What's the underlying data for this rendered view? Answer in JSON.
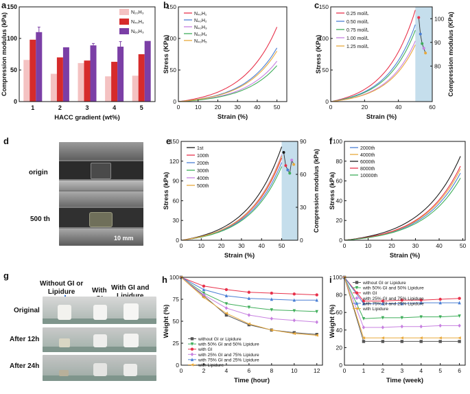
{
  "panel_labels": {
    "a": "a",
    "b": "b",
    "c": "c",
    "d": "d",
    "e": "e",
    "f": "f",
    "g": "g",
    "h": "h",
    "i": "i"
  },
  "chart_data": [
    {
      "id": "a",
      "type": "bar",
      "xlabel": "HACC gradient (wt%)",
      "ylabel": "Compression modulus (kPa)",
      "ylim": [
        0,
        150
      ],
      "yticks": [
        0,
        50,
        100,
        150
      ],
      "categories": [
        "1",
        "2",
        "3",
        "4",
        "5"
      ],
      "series": [
        {
          "name": "N₂₀H₃",
          "color": "#f4c2c2",
          "values": [
            66,
            44,
            61,
            40,
            41
          ],
          "errors": [
            0,
            0,
            0,
            0,
            0
          ]
        },
        {
          "name": "N₄₀H₃",
          "color": "#d62b2b",
          "values": [
            98,
            70,
            65,
            63,
            75
          ],
          "errors": [
            0,
            0,
            0,
            0,
            0
          ]
        },
        {
          "name": "N₆₀H₃",
          "color": "#7b3fa6",
          "values": [
            110,
            86,
            89,
            87,
            96
          ],
          "errors": [
            8,
            0,
            3,
            8,
            0
          ]
        }
      ]
    },
    {
      "id": "b",
      "type": "line",
      "xlabel": "Strain (%)",
      "ylabel": "Stress (KPa)",
      "xlim": [
        0,
        55
      ],
      "xticks": [
        0,
        10,
        20,
        30,
        40,
        50
      ],
      "ylim": [
        0,
        150
      ],
      "yticks": [
        0,
        50,
        100,
        150
      ],
      "series": [
        {
          "name": "N₄₀H₁",
          "color": "#e8314a",
          "end": [
            50,
            118
          ],
          "k": 2.9
        },
        {
          "name": "N₄₀H₂",
          "color": "#4a7fd4",
          "end": [
            50,
            85
          ],
          "k": 3.0
        },
        {
          "name": "N₄₀H₃",
          "color": "#c780e0",
          "end": [
            50,
            64
          ],
          "k": 3.0
        },
        {
          "name": "N₄₀H₄",
          "color": "#3fae5a",
          "end": [
            50,
            57
          ],
          "k": 3.0
        },
        {
          "name": "N₄₀H₅",
          "color": "#e8a93c",
          "end": [
            50,
            80
          ],
          "k": 3.0
        }
      ]
    },
    {
      "id": "c",
      "type": "line",
      "xlabel": "Strain (%)",
      "ylabel": "Stress (KPa)",
      "y2label": "Compression modulus (KPa)",
      "xlim": [
        0,
        60
      ],
      "xticks": [
        0,
        20,
        40,
        60
      ],
      "ylim": [
        0,
        150
      ],
      "yticks": [
        0,
        50,
        100,
        150
      ],
      "y2lim": [
        65,
        105
      ],
      "y2ticks": [
        80,
        90,
        100
      ],
      "shade": [
        50,
        60
      ],
      "shade_color": "#c5deec",
      "series": [
        {
          "name": "0.25 mol/L",
          "color": "#e8314a",
          "end": [
            50,
            145
          ],
          "k": 2.8
        },
        {
          "name": "0.50 mol/L",
          "color": "#4a7fd4",
          "end": [
            50,
            122
          ],
          "k": 2.9
        },
        {
          "name": "0.75 mol/L",
          "color": "#3fae5a",
          "end": [
            50,
            113
          ],
          "k": 2.9
        },
        {
          "name": "1.00 mol/L",
          "color": "#c780e0",
          "end": [
            50,
            96
          ],
          "k": 3.0
        },
        {
          "name": "1.25 mol/L",
          "color": "#e8a93c",
          "end": [
            50,
            90
          ],
          "k": 3.0
        }
      ],
      "modulus_points": {
        "x": [
          52,
          53,
          54,
          55,
          56
        ],
        "y": [
          100.5,
          93.5,
          89.5,
          87.5,
          85.5
        ],
        "colors": [
          "#e8314a",
          "#4a7fd4",
          "#3fae5a",
          "#c780e0",
          "#e8a93c"
        ]
      }
    },
    {
      "id": "e",
      "type": "line",
      "xlabel": "Strain (%)",
      "ylabel": "Stress (kPa)",
      "y2label": "Compression modulus (kPa)",
      "xlim": [
        0,
        58
      ],
      "xticks": [
        0,
        10,
        20,
        30,
        40,
        50
      ],
      "ylim": [
        0,
        150
      ],
      "yticks": [
        0,
        30,
        60,
        90,
        120,
        150
      ],
      "y2lim": [
        0,
        90
      ],
      "y2ticks": [
        0,
        30,
        60,
        90
      ],
      "shade": [
        50,
        58
      ],
      "shade_color": "#c5deec",
      "series": [
        {
          "name": "1st",
          "color": "#1a1a1a",
          "end": [
            50,
            142
          ],
          "k": 2.9
        },
        {
          "name": "100th",
          "color": "#e8314a",
          "end": [
            50,
            125
          ],
          "k": 3.0
        },
        {
          "name": "200th",
          "color": "#4a7fd4",
          "end": [
            50,
            118
          ],
          "k": 3.0
        },
        {
          "name": "300th",
          "color": "#3fae5a",
          "end": [
            50,
            112
          ],
          "k": 3.0
        },
        {
          "name": "400th",
          "color": "#c780e0",
          "end": [
            50,
            130
          ],
          "k": 3.0
        },
        {
          "name": "500th",
          "color": "#e8a93c",
          "end": [
            50,
            128
          ],
          "k": 3.0
        }
      ],
      "modulus_points": {
        "x": [
          51,
          52,
          53,
          54,
          55,
          56
        ],
        "y": [
          80,
          68,
          64,
          61,
          73,
          69
        ],
        "colors": [
          "#1a1a1a",
          "#e8314a",
          "#4a7fd4",
          "#3fae5a",
          "#c780e0",
          "#e8a93c"
        ]
      }
    },
    {
      "id": "f",
      "type": "line",
      "xlabel": "Strain (%)",
      "ylabel": "Stress (kPa)",
      "xlim": [
        0,
        51
      ],
      "xticks": [
        0,
        10,
        20,
        30,
        40,
        50
      ],
      "ylim": [
        0,
        100
      ],
      "yticks": [
        0,
        20,
        40,
        60,
        80,
        100
      ],
      "series": [
        {
          "name": "2000th",
          "color": "#4a7fd4",
          "end": [
            49,
            68
          ],
          "k": 3.1
        },
        {
          "name": "4000th",
          "color": "#e8a93c",
          "end": [
            49,
            72
          ],
          "k": 3.1
        },
        {
          "name": "6000th",
          "color": "#1a1a1a",
          "end": [
            49,
            85
          ],
          "k": 3.0
        },
        {
          "name": "8000th",
          "color": "#e8314a",
          "end": [
            49,
            75
          ],
          "k": 3.1
        },
        {
          "name": "10000th",
          "color": "#3fae5a",
          "end": [
            49,
            63
          ],
          "k": 3.1
        }
      ]
    },
    {
      "id": "h",
      "type": "line",
      "xlabel": "Time (hour)",
      "ylabel": "Weight (%)",
      "xlim": [
        0,
        12.5
      ],
      "xticks": [
        0,
        2,
        4,
        6,
        8,
        10,
        12
      ],
      "ylim": [
        0,
        100
      ],
      "yticks": [
        0,
        25,
        50,
        75,
        100
      ],
      "x": [
        0,
        2,
        4,
        6,
        8,
        10,
        12
      ],
      "series": [
        {
          "name": "without GI or Lipidure",
          "color": "#555555",
          "marker": "square",
          "values": [
            100,
            79,
            57,
            46,
            40,
            37,
            35
          ]
        },
        {
          "name": "with 50% GI and 50% Lipidure",
          "color": "#3fae5a",
          "marker": "tri-down",
          "values": [
            100,
            82,
            70,
            66,
            63,
            62,
            61
          ]
        },
        {
          "name": "with GI",
          "color": "#e8314a",
          "marker": "circle",
          "values": [
            100,
            90,
            86,
            83,
            82,
            81,
            80
          ]
        },
        {
          "name": "with 25% GI and 75% Lipidure",
          "color": "#c780e0",
          "marker": "diamond",
          "values": [
            100,
            80,
            65,
            57,
            53,
            51,
            49
          ]
        },
        {
          "name": "with 75% GI and 25% Lipidure",
          "color": "#4a7fd4",
          "marker": "tri-up",
          "values": [
            100,
            86,
            79,
            76,
            75,
            74,
            74
          ]
        },
        {
          "name": "with Lipidure",
          "color": "#e8a93c",
          "marker": "left",
          "values": [
            100,
            77,
            59,
            47,
            40,
            36,
            34
          ]
        }
      ]
    },
    {
      "id": "i",
      "type": "line",
      "xlabel": "Time (week)",
      "ylabel": "Weight (%)",
      "xlim": [
        0,
        6.3
      ],
      "xticks": [
        0,
        1,
        2,
        3,
        4,
        5,
        6
      ],
      "ylim": [
        0,
        100
      ],
      "yticks": [
        0,
        20,
        40,
        60,
        80,
        100
      ],
      "x": [
        0,
        1,
        2,
        3,
        4,
        5,
        6
      ],
      "series": [
        {
          "name": "without GI or Lipidure",
          "color": "#555555",
          "marker": "square",
          "values": [
            100,
            27,
            27,
            27,
            27,
            27,
            27
          ]
        },
        {
          "name": "with 50% GI and 50% Lipidure",
          "color": "#3fae5a",
          "marker": "tri-down",
          "values": [
            100,
            53,
            54,
            54,
            55,
            55,
            56
          ]
        },
        {
          "name": "with GI",
          "color": "#e8314a",
          "marker": "circle",
          "values": [
            100,
            73,
            73,
            74,
            74,
            75,
            76
          ]
        },
        {
          "name": "with 25% GI and 75% Lipidure",
          "color": "#c780e0",
          "marker": "diamond",
          "values": [
            100,
            43,
            43,
            44,
            44,
            45,
            45
          ]
        },
        {
          "name": "with 75% GI and 25% Lipidure",
          "color": "#4a7fd4",
          "marker": "tri-up",
          "values": [
            100,
            70,
            70,
            70,
            71,
            71,
            71
          ]
        },
        {
          "name": "with Lipidure",
          "color": "#e8a93c",
          "marker": "left",
          "values": [
            100,
            31,
            31,
            31,
            31,
            31,
            31
          ]
        }
      ]
    }
  ],
  "photo_d": {
    "origin_label": "origin",
    "cycle_label": "500 th",
    "scale_label": "10 mm"
  },
  "photo_g": {
    "col_labels": [
      "Without GI or\nLipidure",
      "With\nGI",
      "With GI and\nLipidure"
    ],
    "row_labels": [
      "Original",
      "After 12h",
      "After 24h"
    ]
  }
}
